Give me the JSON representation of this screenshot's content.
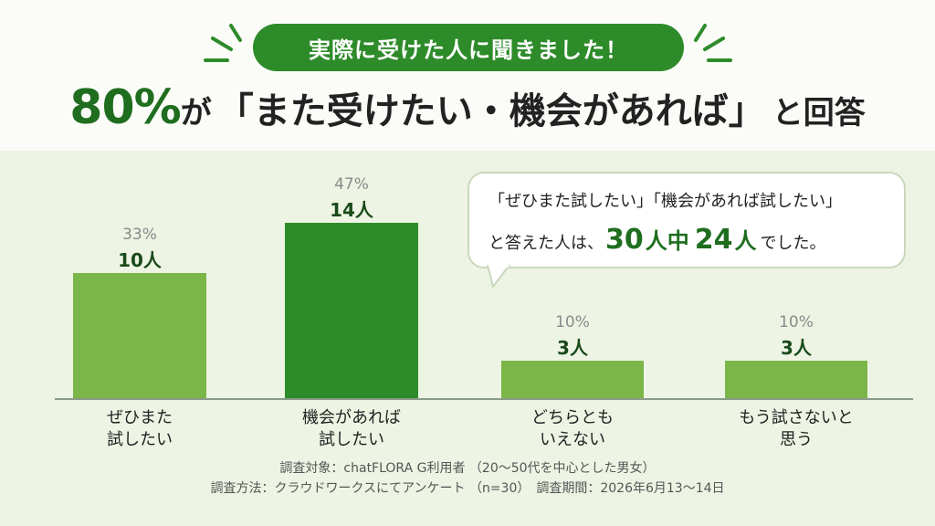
{
  "header": {
    "pill_text": "実際に受けた人に聞きました！",
    "headline_pct": "80%",
    "headline_ga": "が",
    "headline_quote": "「また受けたい・機会があれば」",
    "headline_tail": "と回答"
  },
  "callout": {
    "line1": "「ぜひまた試したい」「機会があれば試したい」",
    "line2_pre": "と答えた人は、",
    "total": "30",
    "unit1": "人中",
    "positive": "24",
    "unit2": "人",
    "line2_post": "でした。"
  },
  "chart_data": {
    "type": "bar",
    "categories": [
      "ぜひまた\n試したい",
      "機会があれば\n試したい",
      "どちらとも\nいえない",
      "もう試さないと\n思う"
    ],
    "values": [
      10,
      14,
      3,
      3
    ],
    "percent_labels": [
      "33%",
      "47%",
      "10%",
      "10%"
    ],
    "count_labels": [
      "10人",
      "14人",
      "3人",
      "3人"
    ],
    "highlight_index": 1,
    "ylim": [
      0,
      14
    ],
    "colors": {
      "bar": "#7ab648",
      "highlight": "#2e8b2a"
    }
  },
  "footnotes": {
    "line1": "調査対象：chatFLORA G利用者 （20～50代を中心とした男女）",
    "line2": "調査方法：クラウドワークスにてアンケート （n=30）　調査期間：2026年6月13～14日"
  }
}
